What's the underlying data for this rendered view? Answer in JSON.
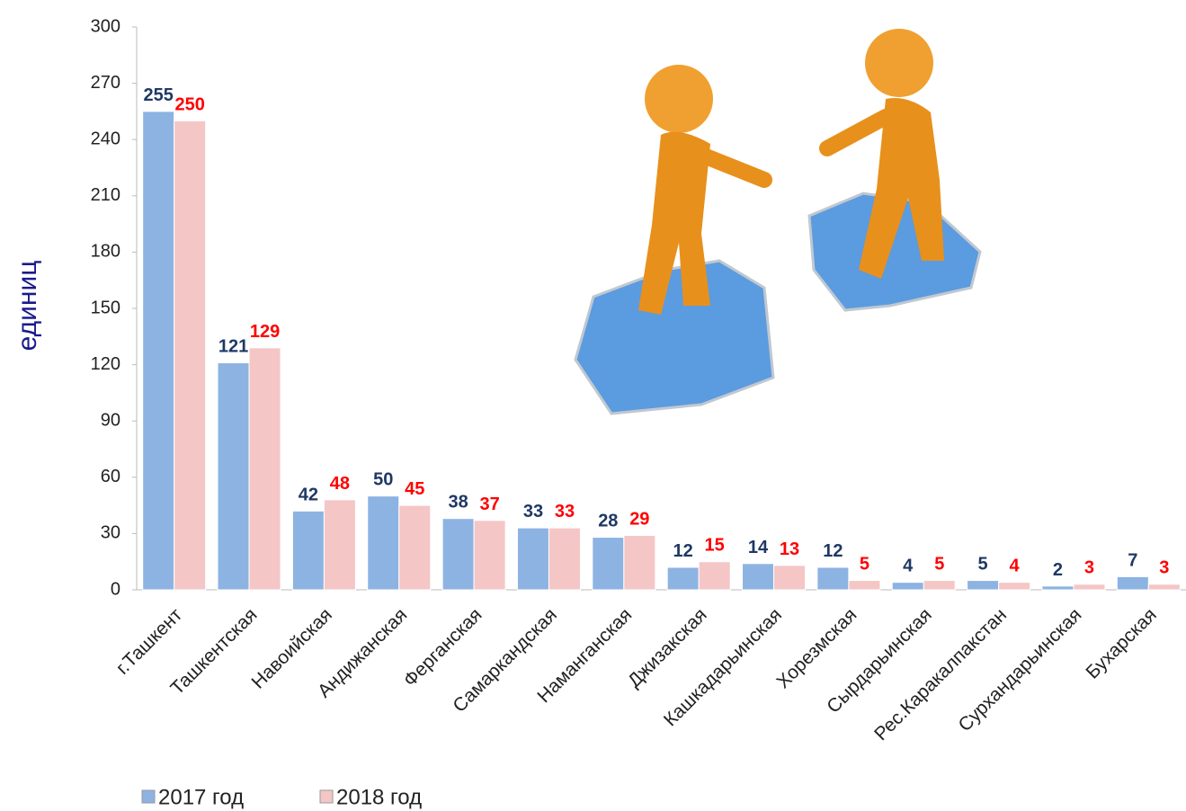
{
  "chart_data": {
    "type": "bar",
    "y_label": "единиц",
    "categories": [
      "г.Ташкент",
      "Ташкентская",
      "Навоийская",
      "Андижанская",
      "Ферганская",
      "Самаркандская",
      "Наманганская",
      "Джизакская",
      "Кашкадарьинская",
      "Хорезмская",
      "Сырдарьинская",
      "Рес.Каракалпакстан",
      "Сурхандарьинская",
      "Бухарская"
    ],
    "series": [
      {
        "name": "2017 год",
        "color": "#8db3e2",
        "label_color": "#1f3864",
        "values": [
          255,
          121,
          42,
          50,
          38,
          33,
          28,
          12,
          14,
          12,
          4,
          5,
          2,
          7
        ]
      },
      {
        "name": "2018 год",
        "color": "#f5c6c6",
        "label_color": "#ff0000",
        "values": [
          250,
          129,
          48,
          45,
          37,
          33,
          29,
          15,
          13,
          5,
          5,
          4,
          3,
          3
        ]
      }
    ],
    "ylim": [
      0,
      300
    ],
    "yticks": [
      0,
      30,
      60,
      90,
      120,
      150,
      180,
      210,
      240,
      270,
      300
    ]
  }
}
